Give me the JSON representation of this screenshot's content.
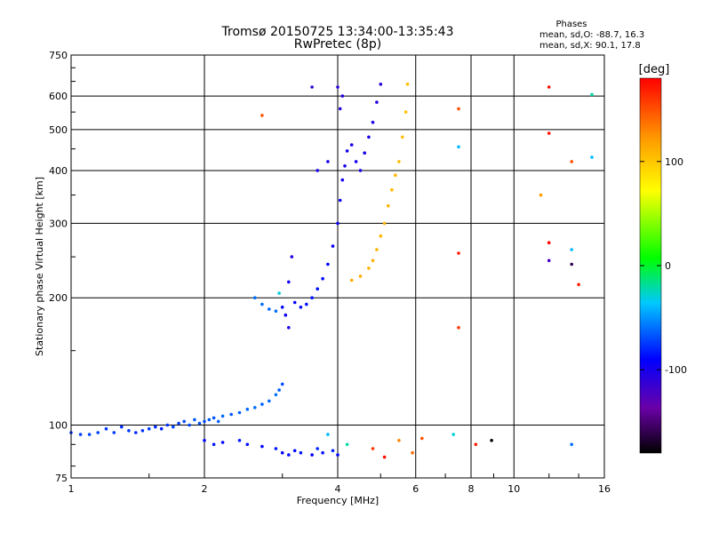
{
  "chart_data": {
    "type": "scatter",
    "title": "Tromsø 20150725 13:34:00-13:35:43",
    "subtitle": "RwPretec (8p)",
    "xlabel": "Frequency [MHz]",
    "ylabel": "Stationary phase Virtual Height [km]",
    "x_scale": "log2",
    "y_scale": "log",
    "xlim": [
      1,
      16
    ],
    "ylim": [
      75,
      750
    ],
    "x_ticks": [
      {
        "value": 1,
        "label": "1"
      },
      {
        "value": 2,
        "label": "2"
      },
      {
        "value": 4,
        "label": "4"
      },
      {
        "value": 6,
        "label": "6"
      },
      {
        "value": 8,
        "label": "8"
      },
      {
        "value": 10,
        "label": "10"
      },
      {
        "value": 16,
        "label": "16"
      }
    ],
    "y_ticks": [
      {
        "value": 75,
        "label": "75"
      },
      {
        "value": 100,
        "label": "100"
      },
      {
        "value": 200,
        "label": "200"
      },
      {
        "value": 300,
        "label": "300"
      },
      {
        "value": 400,
        "label": "400"
      },
      {
        "value": 500,
        "label": "500"
      },
      {
        "value": 600,
        "label": "600"
      },
      {
        "value": 750,
        "label": "750"
      }
    ],
    "grid": true,
    "phase_info": {
      "title": "Phases",
      "line_o": "mean, sd,O: -88.7, 16.3",
      "line_x": "mean, sd,X:  90.1, 17.8"
    },
    "colorbar": {
      "label": "[deg]",
      "range": [
        -180,
        180
      ],
      "ticks": [
        {
          "value": 100,
          "label": "100"
        },
        {
          "value": 0,
          "label": "0"
        },
        {
          "value": -100,
          "label": "-100"
        }
      ]
    },
    "series": [
      {
        "points": [
          [
            1.0,
            96,
            -75
          ],
          [
            1.05,
            95,
            -72
          ],
          [
            1.1,
            95,
            -70
          ],
          [
            1.15,
            96,
            -72
          ],
          [
            1.2,
            98,
            -76
          ],
          [
            1.25,
            96,
            -74
          ],
          [
            1.3,
            99,
            -78
          ],
          [
            1.35,
            97,
            -75
          ],
          [
            1.4,
            96,
            -80
          ],
          [
            1.45,
            97,
            -76
          ],
          [
            1.5,
            98,
            -74
          ],
          [
            1.55,
            99,
            -78
          ],
          [
            1.6,
            98,
            -82
          ],
          [
            1.65,
            100,
            -76
          ],
          [
            1.7,
            99,
            -72
          ],
          [
            1.75,
            101,
            -74
          ],
          [
            1.8,
            102,
            -70
          ],
          [
            1.85,
            100,
            -72
          ],
          [
            1.9,
            103,
            -66
          ],
          [
            1.95,
            101,
            -68
          ],
          [
            2.0,
            102,
            -70
          ],
          [
            2.05,
            103,
            -66
          ],
          [
            2.1,
            104,
            -68
          ],
          [
            2.15,
            102,
            -64
          ],
          [
            2.2,
            105,
            -62
          ],
          [
            2.3,
            106,
            -66
          ],
          [
            2.4,
            107,
            -64
          ],
          [
            2.5,
            109,
            -62
          ],
          [
            2.6,
            110,
            -60
          ],
          [
            2.7,
            112,
            -64
          ],
          [
            2.8,
            114,
            -62
          ],
          [
            2.9,
            118,
            -60
          ],
          [
            2.95,
            121,
            -64
          ],
          [
            3.0,
            125,
            -70
          ]
        ]
      },
      {
        "points": [
          [
            2.0,
            92,
            -88
          ],
          [
            2.1,
            90,
            -85
          ],
          [
            2.2,
            91,
            -90
          ],
          [
            2.4,
            92,
            -82
          ],
          [
            2.5,
            90,
            -86
          ],
          [
            2.7,
            89,
            -88
          ],
          [
            2.9,
            88,
            -84
          ],
          [
            3.0,
            86,
            -90
          ],
          [
            3.1,
            85,
            -86
          ],
          [
            3.2,
            87,
            -88
          ],
          [
            3.3,
            86,
            -84
          ],
          [
            3.5,
            85,
            -90
          ],
          [
            3.6,
            88,
            -80
          ],
          [
            3.7,
            86,
            -86
          ],
          [
            3.9,
            87,
            -82
          ],
          [
            4.0,
            85,
            -88
          ]
        ]
      },
      {
        "points": [
          [
            2.6,
            200,
            -60
          ],
          [
            2.7,
            193,
            -60
          ],
          [
            2.8,
            188,
            -62
          ],
          [
            2.9,
            186,
            -60
          ],
          [
            3.0,
            190,
            -90
          ],
          [
            3.05,
            182,
            -95
          ],
          [
            3.1,
            170,
            -100
          ],
          [
            3.1,
            218,
            -95
          ],
          [
            3.15,
            250,
            -105
          ],
          [
            3.2,
            195,
            -92
          ],
          [
            3.3,
            190,
            -88
          ],
          [
            3.4,
            193,
            -86
          ],
          [
            3.5,
            200,
            -85
          ],
          [
            3.6,
            210,
            -86
          ],
          [
            3.7,
            222,
            -88
          ],
          [
            3.8,
            240,
            -90
          ],
          [
            3.9,
            265,
            -92
          ],
          [
            4.0,
            300,
            -95
          ],
          [
            4.05,
            340,
            -96
          ],
          [
            4.1,
            380,
            -98
          ],
          [
            4.15,
            410,
            -100
          ],
          [
            4.2,
            445,
            -98
          ],
          [
            4.3,
            460,
            -100
          ],
          [
            4.4,
            420,
            -98
          ],
          [
            4.5,
            400,
            -100
          ],
          [
            4.6,
            440,
            -98
          ],
          [
            4.7,
            480,
            -100
          ],
          [
            4.8,
            520,
            -102
          ],
          [
            4.9,
            580,
            -104
          ],
          [
            5.0,
            640,
            -106
          ],
          [
            4.0,
            630,
            -110
          ],
          [
            4.05,
            560,
            -108
          ],
          [
            4.1,
            600,
            -106
          ],
          [
            3.6,
            400,
            -100
          ],
          [
            3.8,
            420,
            -100
          ],
          [
            3.5,
            630,
            -110
          ]
        ]
      },
      {
        "points": [
          [
            4.3,
            220,
            115
          ],
          [
            4.5,
            225,
            112
          ],
          [
            4.7,
            235,
            110
          ],
          [
            4.8,
            245,
            112
          ],
          [
            4.9,
            260,
            110
          ],
          [
            5.0,
            280,
            108
          ],
          [
            5.1,
            300,
            110
          ],
          [
            5.2,
            330,
            108
          ],
          [
            5.3,
            360,
            106
          ],
          [
            5.4,
            390,
            108
          ],
          [
            5.5,
            420,
            106
          ],
          [
            5.6,
            480,
            104
          ],
          [
            5.7,
            550,
            102
          ],
          [
            5.75,
            640,
            104
          ]
        ]
      },
      {
        "points": [
          [
            2.7,
            540,
            150
          ],
          [
            2.95,
            205,
            -30
          ],
          [
            7.5,
            560,
            150
          ],
          [
            7.5,
            455,
            -40
          ],
          [
            7.5,
            255,
            170
          ],
          [
            7.5,
            170,
            160
          ],
          [
            7.3,
            95,
            -30
          ],
          [
            8.2,
            90,
            170
          ],
          [
            8.9,
            92,
            -180
          ],
          [
            11.5,
            350,
            120
          ],
          [
            12.0,
            630,
            175
          ],
          [
            12.0,
            490,
            175
          ],
          [
            12.0,
            270,
            180
          ],
          [
            12.0,
            245,
            -120
          ],
          [
            13.5,
            420,
            150
          ],
          [
            13.5,
            260,
            -40
          ],
          [
            13.5,
            240,
            -160
          ],
          [
            14.0,
            215,
            170
          ],
          [
            15.0,
            605,
            -20
          ],
          [
            15.0,
            430,
            -40
          ],
          [
            13.5,
            90,
            -60
          ],
          [
            4.8,
            88,
            160
          ],
          [
            5.5,
            92,
            130
          ],
          [
            6.2,
            93,
            150
          ],
          [
            3.8,
            95,
            -40
          ],
          [
            4.2,
            90,
            -20
          ],
          [
            5.1,
            84,
            175
          ],
          [
            5.9,
            86,
            140
          ]
        ]
      }
    ]
  }
}
